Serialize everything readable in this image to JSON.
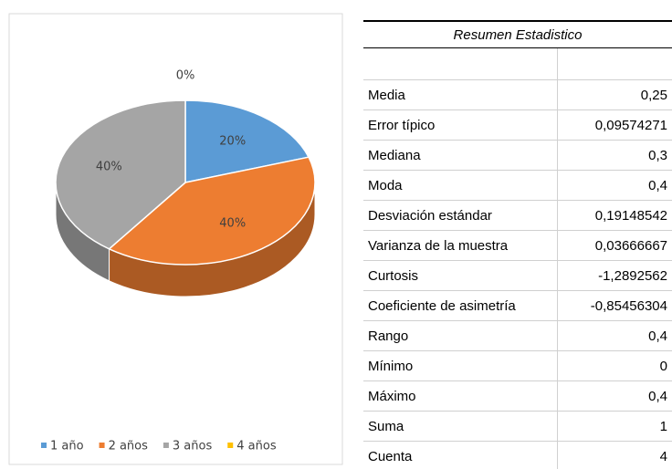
{
  "chart_data": {
    "type": "pie",
    "categories": [
      "1 año",
      "2 años",
      "3 años",
      "4 años"
    ],
    "values": [
      20,
      40,
      40,
      0
    ],
    "value_labels": [
      "20%",
      "40%",
      "40%",
      "0%"
    ],
    "colors": [
      "#5b9bd5",
      "#ed7d31",
      "#a5a5a5",
      "#ffc000"
    ],
    "legend": "bottom"
  },
  "table": {
    "title": "Resumen Estadistico",
    "rows": [
      [
        "Media",
        "0,25"
      ],
      [
        "Error típico",
        "0,09574271"
      ],
      [
        "Mediana",
        "0,3"
      ],
      [
        "Moda",
        "0,4"
      ],
      [
        "Desviación estándar",
        "0,19148542"
      ],
      [
        "Varianza de la muestra",
        "0,03666667"
      ],
      [
        "Curtosis",
        "-1,2892562"
      ],
      [
        "Coeficiente de asimetría",
        "-0,85456304"
      ],
      [
        "Rango",
        "0,4"
      ],
      [
        "Mínimo",
        "0"
      ],
      [
        "Máximo",
        "0,4"
      ],
      [
        "Suma",
        "1"
      ],
      [
        "Cuenta",
        "4"
      ]
    ]
  }
}
